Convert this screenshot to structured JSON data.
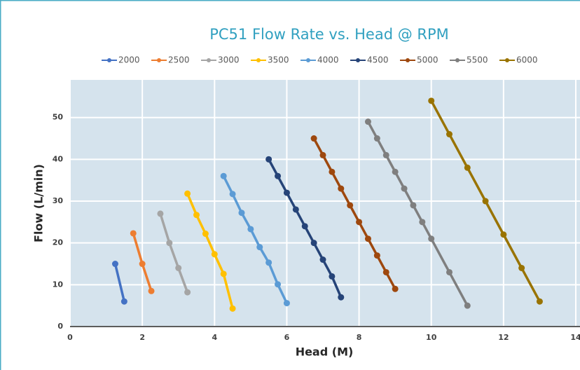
{
  "chart_data": {
    "type": "line",
    "title": "PC51 Flow Rate vs. Head @ RPM",
    "x_label": "Head (M)",
    "y_label": "Flow (L/min)",
    "xlim": [
      0,
      14
    ],
    "xticks": [
      0,
      2,
      4,
      6,
      8,
      10,
      12,
      14
    ],
    "ylim": [
      0,
      59
    ],
    "yticks": [
      0,
      10,
      20,
      30,
      40,
      50
    ],
    "grid": true,
    "legend": "top",
    "series": [
      {
        "name": "2000",
        "color": "#4472c4",
        "x": [
          1.25,
          1.5
        ],
        "values": [
          15,
          6
        ]
      },
      {
        "name": "2500",
        "color": "#ed7d31",
        "x": [
          1.75,
          2,
          2.25
        ],
        "values": [
          22.3,
          15,
          8.5
        ]
      },
      {
        "name": "3000",
        "color": "#a5a5a5",
        "x": [
          2.5,
          2.75,
          3,
          3.25
        ],
        "values": [
          27,
          20,
          14,
          8.2
        ]
      },
      {
        "name": "3500",
        "color": "#ffc000",
        "x": [
          3.25,
          3.5,
          3.75,
          4,
          4.25,
          4.5
        ],
        "values": [
          31.8,
          26.7,
          22.2,
          17.3,
          12.6,
          4.3
        ]
      },
      {
        "name": "4000",
        "color": "#5b9bd5",
        "x": [
          4.25,
          4.5,
          4.75,
          5,
          5.25,
          5.5,
          5.75,
          6
        ],
        "values": [
          36,
          31.7,
          27.2,
          23.3,
          19,
          15.3,
          10.1,
          5.6
        ]
      },
      {
        "name": "4500",
        "color": "#264478",
        "x": [
          5.5,
          5.75,
          6,
          6.25,
          6.5,
          6.75,
          7,
          7.25,
          7.5
        ],
        "values": [
          40,
          36,
          32,
          28,
          24,
          20,
          16,
          12,
          7
        ]
      },
      {
        "name": "5000",
        "color": "#9e480e",
        "x": [
          6.75,
          7,
          7.25,
          7.5,
          7.75,
          8,
          8.25,
          8.5,
          8.75,
          9
        ],
        "values": [
          45,
          41,
          37,
          33,
          29,
          25,
          21,
          17,
          13,
          9
        ]
      },
      {
        "name": "5500",
        "color": "#7f7f7f",
        "x": [
          8.25,
          8.5,
          8.75,
          9,
          9.25,
          9.5,
          9.75,
          10,
          10.5,
          11
        ],
        "values": [
          49,
          45,
          41,
          37,
          33,
          29,
          25,
          21,
          13,
          5
        ]
      },
      {
        "name": "6000",
        "color": "#997300",
        "x": [
          10,
          10.5,
          11,
          11.5,
          12,
          12.5,
          13
        ],
        "values": [
          54,
          46,
          38,
          30,
          22,
          14,
          6
        ]
      }
    ]
  }
}
